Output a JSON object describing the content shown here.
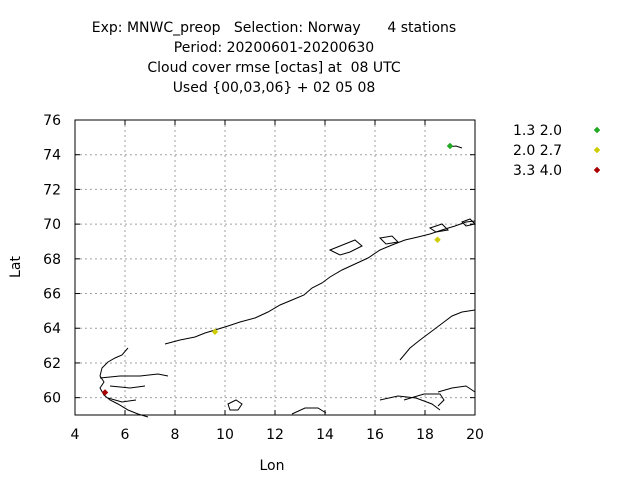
{
  "chart_data": {
    "type": "scatter",
    "title_lines": [
      "Exp: MNWC_preop   Selection: Norway      4 stations",
      "Period: 20200601-20200630",
      "Cloud cover rmse [octas] at  08 UTC",
      "Used {00,03,06} + 02 05 08"
    ],
    "xlabel": "Lon",
    "ylabel": "Lat",
    "xlim": [
      4,
      20
    ],
    "ylim": [
      59,
      76
    ],
    "xticks": [
      4,
      6,
      8,
      10,
      12,
      14,
      16,
      18,
      20
    ],
    "yticks": [
      60,
      62,
      64,
      66,
      68,
      70,
      72,
      74,
      76
    ],
    "grid": true,
    "legend_position": "right",
    "series": [
      {
        "name": "1.3 2.0",
        "color": "#22aa22",
        "points": [
          [
            19.0,
            74.5
          ]
        ]
      },
      {
        "name": "2.0 2.7",
        "color": "#cccc00",
        "points": [
          [
            9.6,
            63.8
          ],
          [
            18.5,
            69.1
          ]
        ]
      },
      {
        "name": "3.3 4.0",
        "color": "#aa0000",
        "points": [
          [
            5.2,
            60.3
          ]
        ]
      }
    ]
  }
}
